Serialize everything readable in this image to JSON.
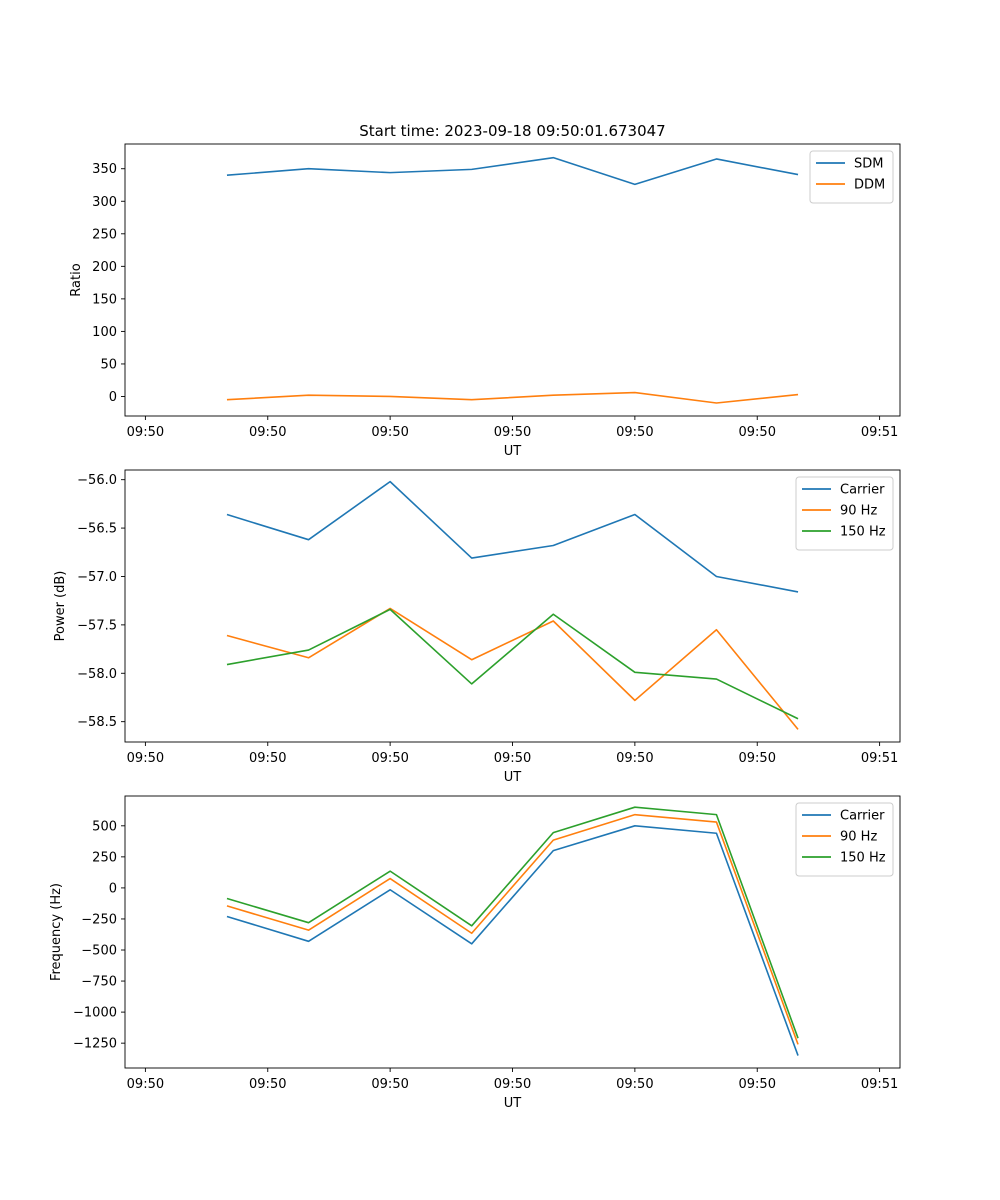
{
  "figure_title": "Start time: 2023-09-18 09:50:01.673047",
  "chart_data": [
    {
      "type": "line",
      "title": "Start time: 2023-09-18 09:50:01.673047",
      "xlabel": "UT",
      "ylabel": "Ratio",
      "x": [
        0.8,
        1.6,
        2.4,
        3.2,
        4.0,
        4.8,
        5.6,
        6.4
      ],
      "xlim": [
        -0.2,
        7.4
      ],
      "xticks": [
        0,
        1.2,
        2.4,
        3.6,
        4.8,
        6.0,
        7.2
      ],
      "xtick_labels": [
        "09:50",
        "09:50",
        "09:50",
        "09:50",
        "09:50",
        "09:50",
        "09:51"
      ],
      "ylim": [
        -30,
        388
      ],
      "yticks": [
        0,
        50,
        100,
        150,
        200,
        250,
        300,
        350
      ],
      "ytick_labels": [
        "0",
        "50",
        "100",
        "150",
        "200",
        "250",
        "300",
        "350"
      ],
      "legend": "top-right",
      "series": [
        {
          "name": "SDM",
          "color": "#1f77b4",
          "values": [
            340,
            350,
            344,
            349,
            367,
            326,
            365,
            341
          ]
        },
        {
          "name": "DDM",
          "color": "#ff7f0e",
          "values": [
            -5,
            2,
            0,
            -5,
            2,
            6,
            -10,
            3
          ]
        }
      ]
    },
    {
      "type": "line",
      "xlabel": "UT",
      "ylabel": "Power (dB)",
      "x": [
        0.8,
        1.6,
        2.4,
        3.2,
        4.0,
        4.8,
        5.6,
        6.4
      ],
      "xlim": [
        -0.2,
        7.4
      ],
      "xticks": [
        0,
        1.2,
        2.4,
        3.6,
        4.8,
        6.0,
        7.2
      ],
      "xtick_labels": [
        "09:50",
        "09:50",
        "09:50",
        "09:50",
        "09:50",
        "09:50",
        "09:51"
      ],
      "ylim": [
        -58.71,
        -55.9
      ],
      "yticks": [
        -58.5,
        -58.0,
        -57.5,
        -57.0,
        -56.5,
        -56.0
      ],
      "ytick_labels": [
        "−58.5",
        "−58.0",
        "−57.5",
        "−57.0",
        "−56.5",
        "−56.0"
      ],
      "legend": "top-right",
      "series": [
        {
          "name": "Carrier",
          "color": "#1f77b4",
          "values": [
            -56.36,
            -56.62,
            -56.02,
            -56.81,
            -56.68,
            -56.36,
            -57.0,
            -57.16
          ]
        },
        {
          "name": "90 Hz",
          "color": "#ff7f0e",
          "values": [
            -57.61,
            -57.84,
            -57.33,
            -57.86,
            -57.46,
            -58.28,
            -57.55,
            -58.58
          ]
        },
        {
          "name": "150 Hz",
          "color": "#2ca02c",
          "values": [
            -57.91,
            -57.76,
            -57.34,
            -58.11,
            -57.39,
            -57.99,
            -58.06,
            -58.47
          ]
        }
      ]
    },
    {
      "type": "line",
      "xlabel": "UT",
      "ylabel": "Frequency (Hz)",
      "x": [
        0.8,
        1.6,
        2.4,
        3.2,
        4.0,
        4.8,
        5.6,
        6.4
      ],
      "xlim": [
        -0.2,
        7.4
      ],
      "xticks": [
        0,
        1.2,
        2.4,
        3.6,
        4.8,
        6.0,
        7.2
      ],
      "xtick_labels": [
        "09:50",
        "09:50",
        "09:50",
        "09:50",
        "09:50",
        "09:50",
        "09:51"
      ],
      "ylim": [
        -1450,
        740
      ],
      "yticks": [
        -1250,
        -1000,
        -750,
        -500,
        -250,
        0,
        250,
        500
      ],
      "ytick_labels": [
        "−1250",
        "−1000",
        "−750",
        "−500",
        "−250",
        "0",
        "250",
        "500"
      ],
      "legend": "top-right",
      "series": [
        {
          "name": "Carrier",
          "color": "#1f77b4",
          "values": [
            -230,
            -430,
            -15,
            -450,
            300,
            500,
            440,
            -1350
          ]
        },
        {
          "name": "90 Hz",
          "color": "#ff7f0e",
          "values": [
            -145,
            -340,
            75,
            -365,
            385,
            590,
            530,
            -1260
          ]
        },
        {
          "name": "150 Hz",
          "color": "#2ca02c",
          "values": [
            -85,
            -280,
            135,
            -305,
            445,
            650,
            590,
            -1210
          ]
        }
      ]
    }
  ]
}
